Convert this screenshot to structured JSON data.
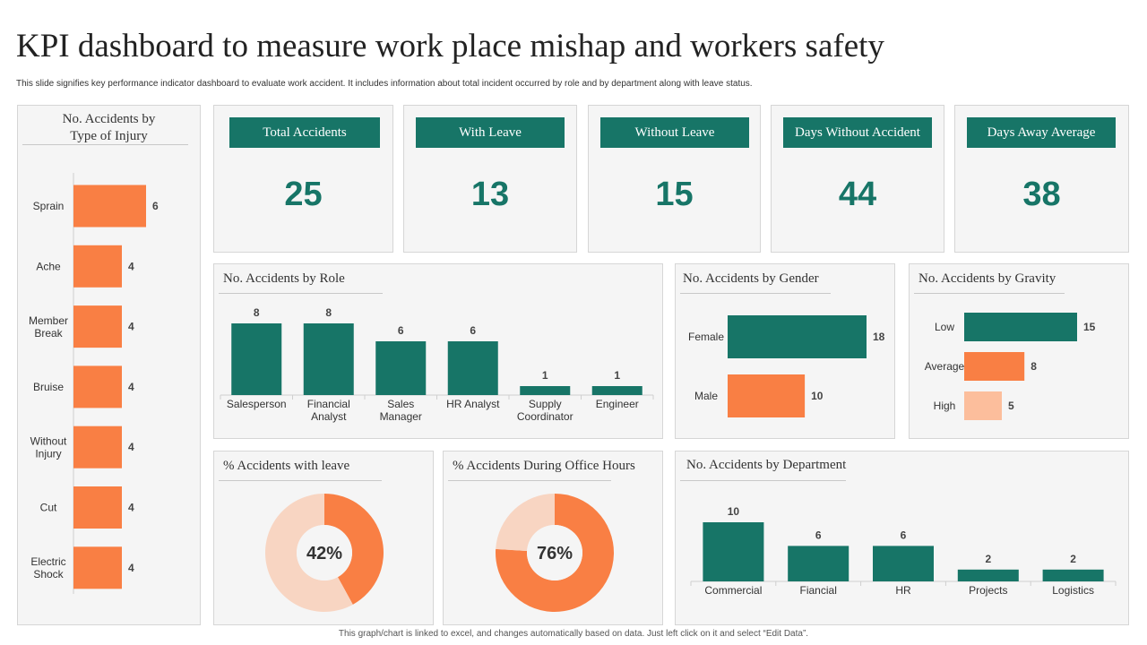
{
  "page": {
    "title": "KPI dashboard to measure work place mishap and workers safety",
    "subtitle": "This slide signifies key performance indicator dashboard to evaluate work accident. It includes information about total incident occurred by role and by department along  with leave status.",
    "footer": "This graph/chart is linked to excel, and changes automatically based on data. Just left click on it and select “Edit Data”."
  },
  "colors": {
    "teal": "#177567",
    "orange": "#f97f44",
    "light_orange": "#fcbe9c",
    "pale_orange": "#f8d5c2",
    "panel_bg": "#f5f5f5"
  },
  "kpis": [
    {
      "label": "Total Accidents",
      "value": "25"
    },
    {
      "label": "With Leave",
      "value": "13"
    },
    {
      "label": "Without Leave",
      "value": "15"
    },
    {
      "label": "Days Without Accident",
      "value": "44"
    },
    {
      "label": "Days Away Average",
      "value": "38"
    }
  ],
  "chart_data": [
    {
      "id": "injury",
      "type": "bar",
      "orientation": "horizontal",
      "title": "No. Accidents by Type of Injury",
      "title_lines": [
        "No. Accidents by",
        "Type of Injury"
      ],
      "categories": [
        "Sprain",
        "Ache",
        "Member Break",
        "Bruise",
        "Without Injury",
        "Cut",
        "Electric Shock"
      ],
      "values": [
        6,
        4,
        4,
        4,
        4,
        4,
        4
      ]
    },
    {
      "id": "role",
      "type": "bar",
      "title": "No. Accidents by Role",
      "categories": [
        "Salesperson",
        "Financial Analyst",
        "Sales Manager",
        "HR Analyst",
        "Supply Coordinator",
        "Engineer"
      ],
      "values": [
        8,
        8,
        6,
        6,
        1,
        1
      ]
    },
    {
      "id": "gender",
      "type": "bar",
      "orientation": "horizontal",
      "title": "No. Accidents by Gender",
      "categories": [
        "Female",
        "Male"
      ],
      "values": [
        18,
        10
      ]
    },
    {
      "id": "gravity",
      "type": "bar",
      "orientation": "horizontal",
      "title": "No. Accidents by Gravity",
      "categories": [
        "Low",
        "Average",
        "High"
      ],
      "values": [
        15,
        8,
        5
      ]
    },
    {
      "id": "leave",
      "type": "pie",
      "title": "% Accidents with leave",
      "value": 42,
      "label": "42%"
    },
    {
      "id": "office",
      "type": "pie",
      "title": "% Accidents During Office Hours",
      "value": 76,
      "label": "76%"
    },
    {
      "id": "department",
      "type": "bar",
      "title": "No. Accidents by Department",
      "categories": [
        "Commercial",
        "Fiancial",
        "HR",
        "Projects",
        "Logistics"
      ],
      "values": [
        10,
        6,
        6,
        2,
        2
      ]
    }
  ]
}
